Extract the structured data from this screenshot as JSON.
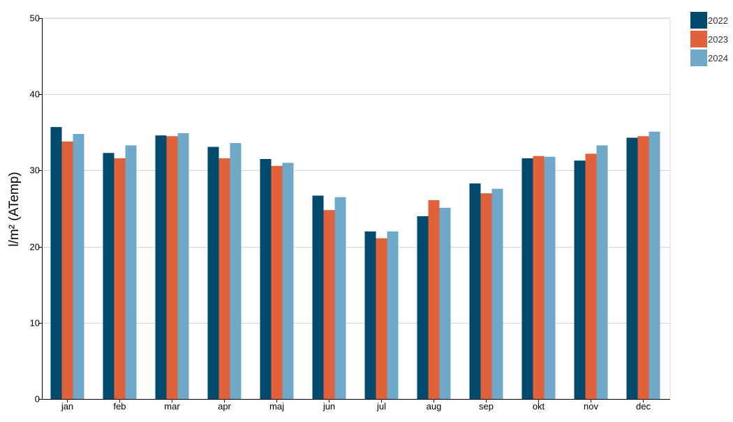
{
  "chart_data": {
    "type": "bar",
    "title": "",
    "xlabel": "",
    "ylabel": "l/m² (ATemp)",
    "ylim": [
      0,
      50
    ],
    "yticks": [
      0,
      10,
      20,
      30,
      40,
      50
    ],
    "grid": true,
    "legend_position": "top-right",
    "categories": [
      "jan",
      "feb",
      "mar",
      "apr",
      "maj",
      "jun",
      "jul",
      "aug",
      "sep",
      "okt",
      "nov",
      "dec"
    ],
    "series": [
      {
        "name": "2022",
        "color": "#004a6e",
        "values": [
          35.7,
          32.3,
          34.6,
          33.1,
          31.5,
          26.7,
          22.0,
          24.0,
          28.3,
          31.6,
          31.3,
          34.3
        ]
      },
      {
        "name": "2023",
        "color": "#e0613a",
        "values": [
          33.8,
          31.6,
          34.5,
          31.6,
          30.6,
          24.8,
          21.1,
          26.1,
          27.0,
          31.9,
          32.2,
          34.5
        ]
      },
      {
        "name": "2024",
        "color": "#6fa8c8",
        "values": [
          34.8,
          33.3,
          34.9,
          33.6,
          31.0,
          26.5,
          22.0,
          25.1,
          27.6,
          31.8,
          33.3,
          35.1
        ]
      }
    ]
  }
}
